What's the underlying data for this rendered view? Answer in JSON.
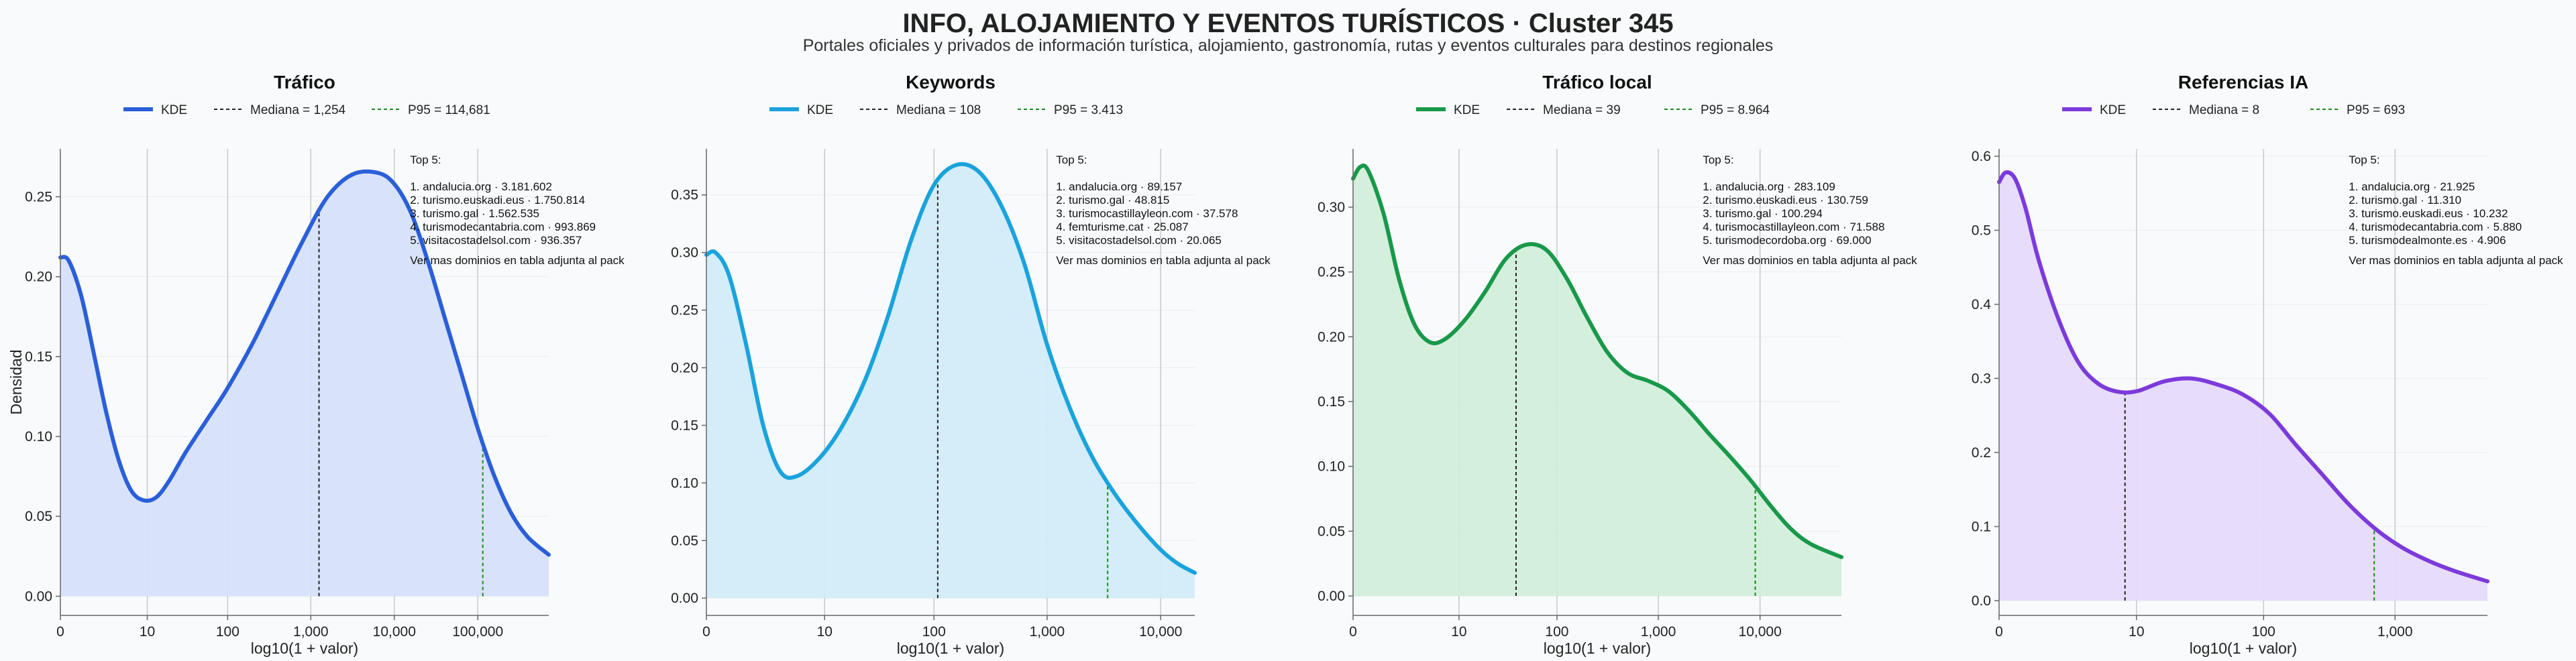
{
  "title": "INFO, ALOJAMIENTO Y EVENTOS TURÍSTICOS · Cluster 345",
  "subtitle": "Portales oficiales y privados de información turística, alojamiento, gastronomía, rutas y eventos culturales para destinos regionales",
  "ylabel": "Densidad",
  "xlabel": "log10(1 + valor)",
  "chart_data": [
    {
      "type": "area",
      "title": "Tráfico",
      "color": "#2b5fd9",
      "fill": "#d6e2fa",
      "xlim": [
        0,
        5.85
      ],
      "ylim": [
        -0.012,
        0.28
      ],
      "xticks": [
        {
          "v": 0,
          "label": "0"
        },
        {
          "v": 1.041,
          "label": "10"
        },
        {
          "v": 2.004,
          "label": "100"
        },
        {
          "v": 3.0,
          "label": "1,000"
        },
        {
          "v": 4.0,
          "label": "10,000"
        },
        {
          "v": 5.0,
          "label": "100,000"
        }
      ],
      "yticks": [
        {
          "v": 0,
          "label": "0.00"
        },
        {
          "v": 0.05,
          "label": "0.05"
        },
        {
          "v": 0.1,
          "label": "0.10"
        },
        {
          "v": 0.15,
          "label": "0.15"
        },
        {
          "v": 0.2,
          "label": "0.20"
        },
        {
          "v": 0.25,
          "label": "0.25"
        }
      ],
      "series": [
        {
          "x": [
            0,
            0.1,
            0.25,
            0.4,
            0.55,
            0.7,
            0.85,
            1.0,
            1.15,
            1.3,
            1.5,
            1.75,
            2.0,
            2.3,
            2.6,
            2.9,
            3.2,
            3.5,
            3.8,
            4.0,
            4.2,
            4.4,
            4.6,
            4.8,
            5.0,
            5.2,
            5.4,
            5.6,
            5.85
          ],
          "y": [
            0.212,
            0.21,
            0.188,
            0.152,
            0.115,
            0.085,
            0.066,
            0.06,
            0.062,
            0.072,
            0.09,
            0.11,
            0.13,
            0.158,
            0.19,
            0.222,
            0.25,
            0.264,
            0.265,
            0.258,
            0.24,
            0.21,
            0.175,
            0.14,
            0.105,
            0.075,
            0.052,
            0.037,
            0.026
          ]
        }
      ],
      "legend": {
        "kde": "KDE",
        "median": "Mediana = 1,254",
        "p95": "P95 = 114,681"
      },
      "median_x": 3.098,
      "p95_x": 5.06,
      "top5": {
        "heading": "Top 5:",
        "items": [
          "1. andalucia.org · 3.181.602",
          "2. turismo.euskadi.eus · 1.750.814",
          "3. turismo.gal · 1.562.535",
          "4. turismodecantabria.com · 993.869",
          "5. visitacostadelsol.com · 936.357"
        ],
        "note": "Ver mas dominios en tabla adjunta al pack"
      }
    },
    {
      "type": "area",
      "title": "Keywords",
      "color": "#1aa3dc",
      "fill": "#d2ecf9",
      "xlim": [
        0,
        4.3
      ],
      "ylim": [
        -0.015,
        0.39
      ],
      "xticks": [
        {
          "v": 0,
          "label": "0"
        },
        {
          "v": 1.041,
          "label": "10"
        },
        {
          "v": 2.004,
          "label": "100"
        },
        {
          "v": 3.0,
          "label": "1,000"
        },
        {
          "v": 4.0,
          "label": "10,000"
        }
      ],
      "yticks": [
        {
          "v": 0,
          "label": "0.00"
        },
        {
          "v": 0.05,
          "label": "0.05"
        },
        {
          "v": 0.1,
          "label": "0.10"
        },
        {
          "v": 0.15,
          "label": "0.15"
        },
        {
          "v": 0.2,
          "label": "0.20"
        },
        {
          "v": 0.25,
          "label": "0.25"
        },
        {
          "v": 0.3,
          "label": "0.30"
        },
        {
          "v": 0.35,
          "label": "0.35"
        }
      ],
      "series": [
        {
          "x": [
            0,
            0.08,
            0.2,
            0.35,
            0.5,
            0.65,
            0.8,
            1.0,
            1.2,
            1.4,
            1.6,
            1.8,
            2.0,
            2.2,
            2.4,
            2.6,
            2.8,
            3.0,
            3.2,
            3.4,
            3.6,
            3.8,
            4.0,
            4.15,
            4.3
          ],
          "y": [
            0.298,
            0.3,
            0.28,
            0.22,
            0.15,
            0.11,
            0.106,
            0.122,
            0.15,
            0.19,
            0.245,
            0.31,
            0.358,
            0.376,
            0.37,
            0.34,
            0.29,
            0.22,
            0.165,
            0.122,
            0.09,
            0.064,
            0.042,
            0.03,
            0.022
          ]
        }
      ],
      "legend": {
        "kde": "KDE",
        "median": "Mediana = 108",
        "p95": "P95 = 3.413"
      },
      "median_x": 2.037,
      "p95_x": 3.533,
      "top5": {
        "heading": "Top 5:",
        "items": [
          "1. andalucia.org · 89.157",
          "2. turismo.gal · 48.815",
          "3. turismocastillayleon.com · 37.578",
          "4. femturisme.cat · 25.087",
          "5. visitacostadelsol.com · 20.065"
        ],
        "note": "Ver mas dominios en tabla adjunta al pack"
      }
    },
    {
      "type": "area",
      "title": "Tráfico local",
      "color": "#18994a",
      "fill": "#d3eedb",
      "xlim": [
        0,
        4.8
      ],
      "ylim": [
        -0.015,
        0.345
      ],
      "xticks": [
        {
          "v": 0,
          "label": "0"
        },
        {
          "v": 1.041,
          "label": "10"
        },
        {
          "v": 2.004,
          "label": "100"
        },
        {
          "v": 3.0,
          "label": "1,000"
        },
        {
          "v": 4.0,
          "label": "10,000"
        }
      ],
      "yticks": [
        {
          "v": 0,
          "label": "0.00"
        },
        {
          "v": 0.05,
          "label": "0.05"
        },
        {
          "v": 0.1,
          "label": "0.10"
        },
        {
          "v": 0.15,
          "label": "0.15"
        },
        {
          "v": 0.2,
          "label": "0.20"
        },
        {
          "v": 0.25,
          "label": "0.25"
        },
        {
          "v": 0.3,
          "label": "0.30"
        }
      ],
      "series": [
        {
          "x": [
            0,
            0.07,
            0.15,
            0.3,
            0.45,
            0.6,
            0.75,
            0.9,
            1.1,
            1.3,
            1.5,
            1.7,
            1.9,
            2.1,
            2.3,
            2.5,
            2.7,
            2.9,
            3.1,
            3.3,
            3.5,
            3.7,
            3.9,
            4.1,
            4.3,
            4.5,
            4.8
          ],
          "y": [
            0.322,
            0.331,
            0.328,
            0.295,
            0.245,
            0.21,
            0.196,
            0.198,
            0.213,
            0.235,
            0.26,
            0.271,
            0.267,
            0.245,
            0.215,
            0.188,
            0.172,
            0.166,
            0.158,
            0.143,
            0.125,
            0.108,
            0.09,
            0.07,
            0.052,
            0.04,
            0.03
          ]
        }
      ],
      "legend": {
        "kde": "KDE",
        "median": "Mediana = 39",
        "p95": "P95 = 8.964"
      },
      "median_x": 1.602,
      "p95_x": 3.953,
      "top5": {
        "heading": "Top 5:",
        "items": [
          "1. andalucia.org · 283.109",
          "2. turismo.euskadi.eus · 130.759",
          "3. turismo.gal · 100.294",
          "4. turismocastillayleon.com · 71.588",
          "5. turismodecordoba.org · 69.000"
        ],
        "note": "Ver mas dominios en tabla adjunta al pack"
      }
    },
    {
      "type": "area",
      "title": "Referencias IA",
      "color": "#7c3adb",
      "fill": "#e6dafa",
      "xlim": [
        0,
        3.7
      ],
      "ylim": [
        -0.02,
        0.61
      ],
      "xticks": [
        {
          "v": 0,
          "label": "0"
        },
        {
          "v": 1.041,
          "label": "10"
        },
        {
          "v": 2.004,
          "label": "100"
        },
        {
          "v": 3.0,
          "label": "1,000"
        }
      ],
      "yticks": [
        {
          "v": 0,
          "label": "0.0"
        },
        {
          "v": 0.1,
          "label": "0.1"
        },
        {
          "v": 0.2,
          "label": "0.2"
        },
        {
          "v": 0.3,
          "label": "0.3"
        },
        {
          "v": 0.4,
          "label": "0.4"
        },
        {
          "v": 0.5,
          "label": "0.5"
        },
        {
          "v": 0.6,
          "label": "0.6"
        }
      ],
      "series": [
        {
          "x": [
            0,
            0.05,
            0.12,
            0.2,
            0.3,
            0.45,
            0.6,
            0.75,
            0.9,
            1.05,
            1.25,
            1.45,
            1.65,
            1.85,
            2.05,
            2.25,
            2.45,
            2.65,
            2.85,
            3.05,
            3.25,
            3.45,
            3.7
          ],
          "y": [
            0.565,
            0.578,
            0.57,
            0.53,
            0.46,
            0.38,
            0.322,
            0.293,
            0.282,
            0.283,
            0.296,
            0.3,
            0.292,
            0.278,
            0.252,
            0.21,
            0.17,
            0.13,
            0.097,
            0.072,
            0.054,
            0.04,
            0.026
          ]
        }
      ],
      "legend": {
        "kde": "KDE",
        "median": "Mediana = 8",
        "p95": "P95 = 693"
      },
      "median_x": 0.954,
      "p95_x": 2.842,
      "top5": {
        "heading": "Top 5:",
        "items": [
          "1. andalucia.org · 21.925",
          "2. turismo.gal · 11.310",
          "3. turismo.euskadi.eus · 10.232",
          "4. turismodecantabria.com · 5.880",
          "5. turismodealmonte.es · 4.906"
        ],
        "note": "Ver mas dominios en tabla adjunta al pack"
      }
    }
  ]
}
